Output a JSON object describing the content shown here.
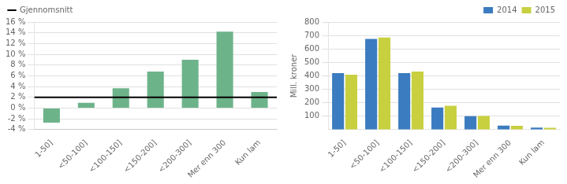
{
  "chart_data": [
    {
      "type": "bar",
      "categories": [
        "1-50]",
        "<50-100]",
        "<100-150]",
        "<150-200]",
        "<200-300]",
        "Mer enn 300",
        "Kun lam"
      ],
      "values": [
        -2.7,
        1.0,
        3.7,
        6.8,
        9.0,
        14.2,
        3.0
      ],
      "color": "#6db38a",
      "mean": {
        "name": "Gjennomsnitt",
        "value": 2.0,
        "color": "#000000"
      },
      "ylim": [
        -4,
        16
      ],
      "yticks": [
        {
          "value": -4,
          "label": "-4 %"
        },
        {
          "value": -2,
          "label": "-2 %"
        },
        {
          "value": 0,
          "label": "0 %"
        },
        {
          "value": 2,
          "label": "2 %"
        },
        {
          "value": 4,
          "label": "4 %"
        },
        {
          "value": 6,
          "label": "6 %"
        },
        {
          "value": 8,
          "label": "8 %"
        },
        {
          "value": 10,
          "label": "10 %"
        },
        {
          "value": 12,
          "label": "12 %"
        },
        {
          "value": 14,
          "label": "14 %"
        },
        {
          "value": 16,
          "label": "16 %"
        }
      ],
      "grid": true,
      "legend": "upper left"
    },
    {
      "type": "bar",
      "categories": [
        "1-50]",
        "<50-100]",
        "<100-150]",
        "<150-200]",
        "<200-300]",
        "Mer enn 300",
        "Kun lam"
      ],
      "series": [
        {
          "name": "2014",
          "color": "#3b7bbf",
          "values": [
            420,
            675,
            420,
            165,
            100,
            30,
            15
          ]
        },
        {
          "name": "2015",
          "color": "#c8d040",
          "values": [
            408,
            685,
            432,
            178,
            102,
            28,
            14
          ]
        }
      ],
      "ylabel": "Mill. kroner",
      "ylim": [
        0,
        800
      ],
      "yticks": [
        100,
        200,
        300,
        400,
        500,
        600,
        700,
        800
      ],
      "grid": true,
      "legend": "upper right"
    }
  ]
}
